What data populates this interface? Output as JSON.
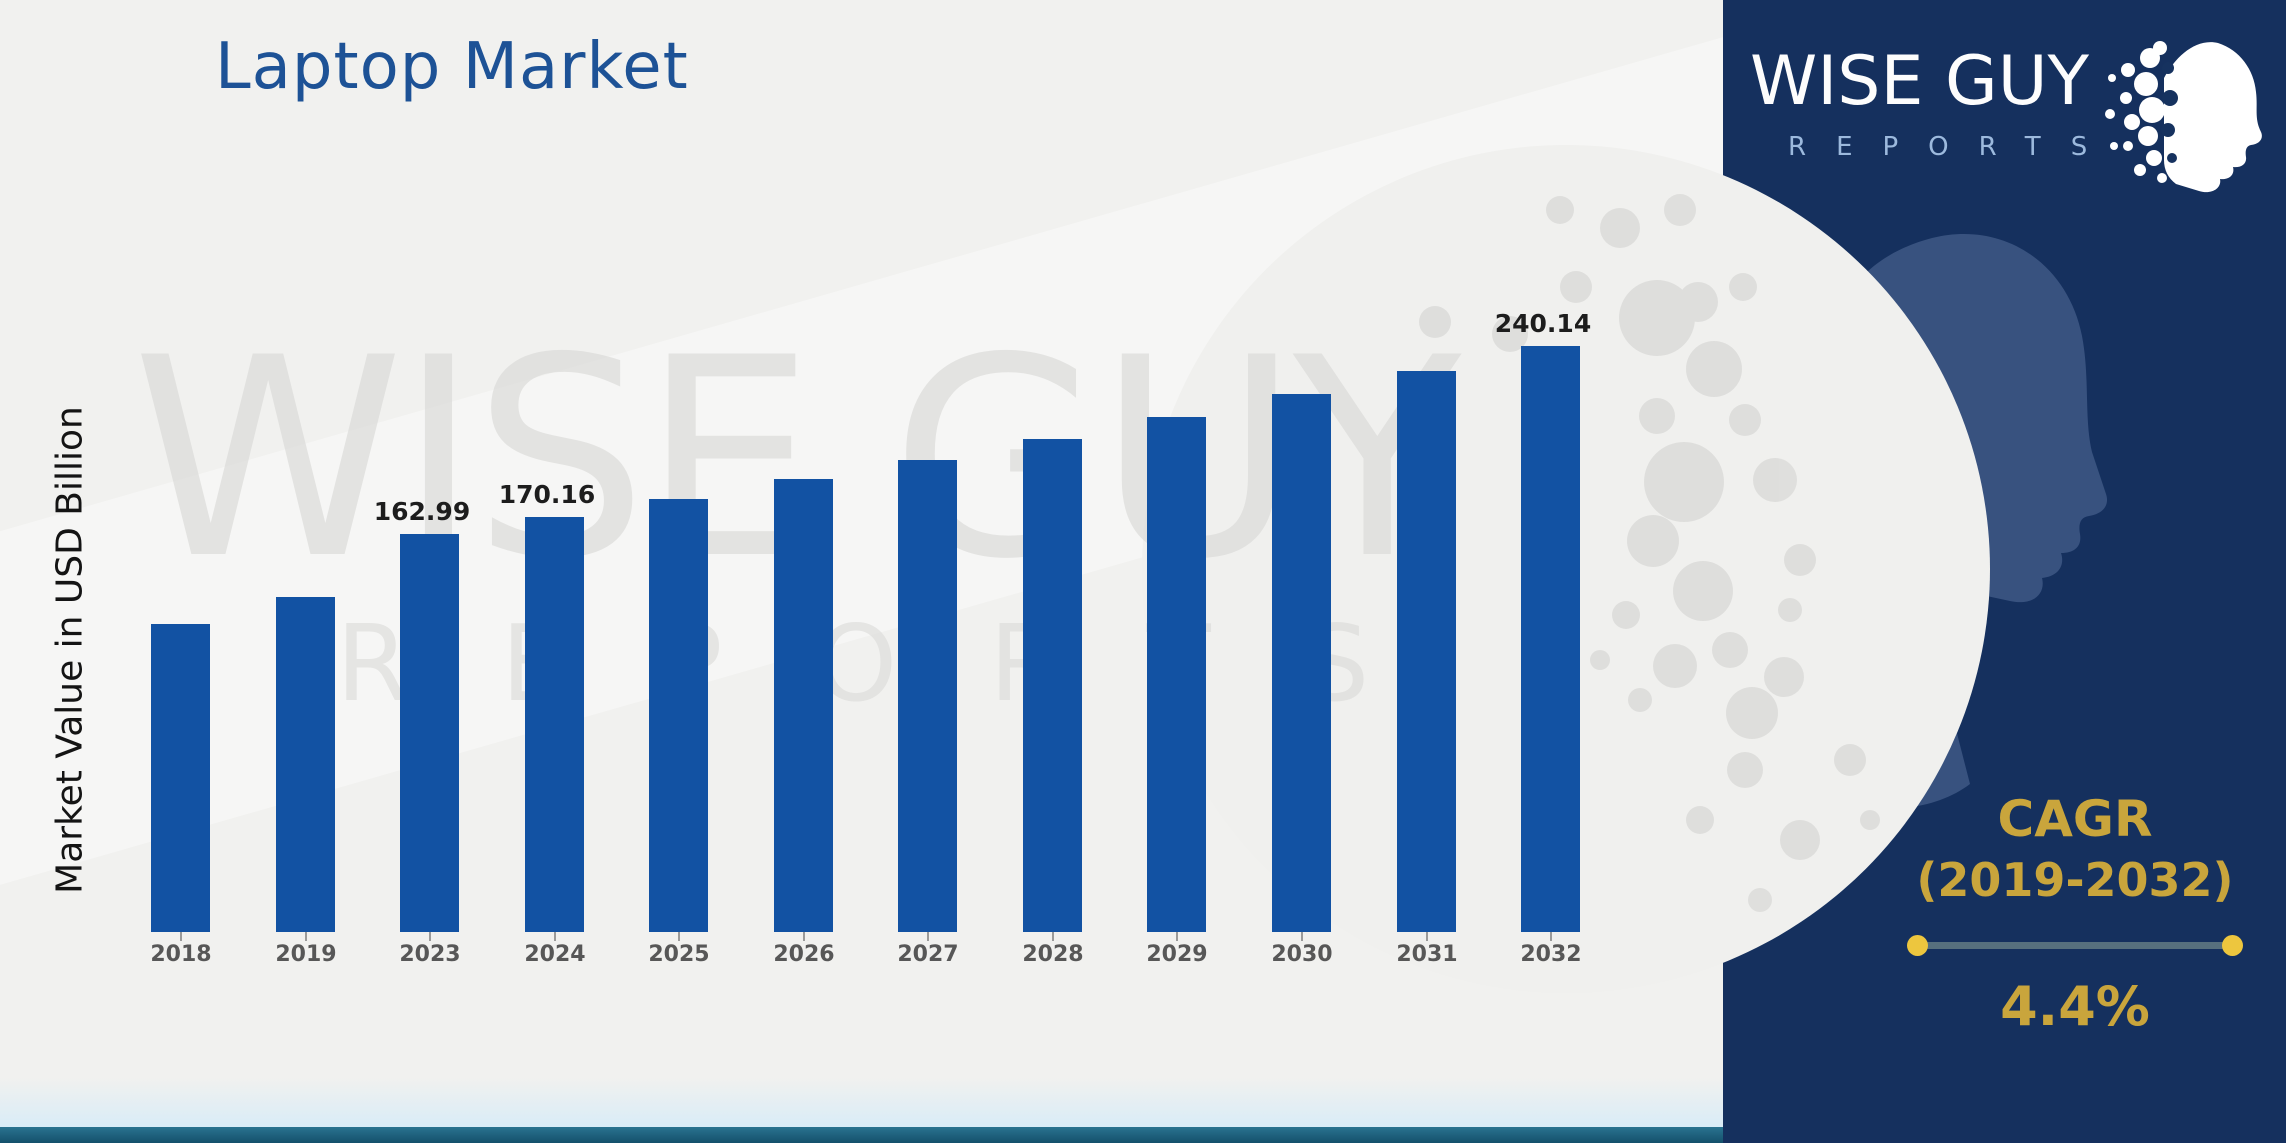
{
  "page": {
    "title": "Laptop Market"
  },
  "ylabel": "Market Value in USD Billion",
  "watermark": {
    "line1": "WISE GUY",
    "line2": "REPORTS"
  },
  "brand": {
    "line1": "WISE GUY",
    "line2": "REPORTS"
  },
  "cagr": {
    "heading": "CAGR",
    "period": "(2019-2032)",
    "value": "4.4%"
  },
  "chart_data": {
    "type": "bar",
    "title": "Laptop Market",
    "xlabel": "",
    "ylabel": "Market Value in USD Billion",
    "categories": [
      "2018",
      "2019",
      "2023",
      "2024",
      "2025",
      "2026",
      "2027",
      "2028",
      "2029",
      "2030",
      "2031",
      "2032"
    ],
    "values": [
      126.4,
      137.21,
      162.99,
      170.16,
      177.65,
      185.47,
      193.63,
      202.15,
      211.04,
      220.33,
      230.02,
      240.14
    ],
    "data_labels": [
      null,
      null,
      "162.99",
      "170.16",
      null,
      null,
      null,
      null,
      null,
      null,
      null,
      "240.14"
    ],
    "ylim": [
      0,
      260
    ],
    "grid": false,
    "legend": false,
    "bar_color": "#1252a3",
    "cagr_annotation": {
      "label": "CAGR",
      "period": "(2019-2032)",
      "value": "4.4%"
    }
  },
  "colors": {
    "background": "#f1f1ef",
    "bar": "#1252a3",
    "title_text": "#1d5296",
    "panel_navy": "#15305e",
    "gold": "#c9a53c",
    "teal_strip": "#1e6181",
    "year_label_text": "#575757",
    "value_label_text": "#1d1d1d",
    "watermark_gray": "#d8d8d6"
  }
}
